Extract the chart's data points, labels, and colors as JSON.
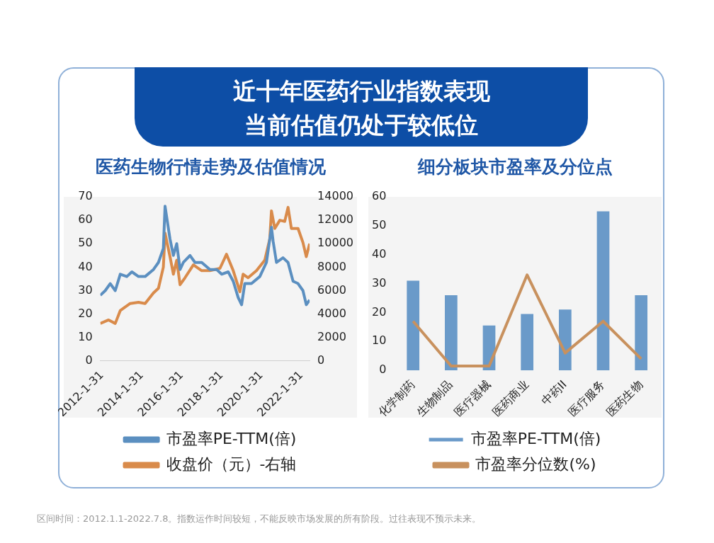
{
  "chart_data": [
    {
      "type": "other",
      "title": "近十年医药行业指数表现当前估值仍处于较低位",
      "annotations": [
        "区间时间：2012.1.1-2022.7.8。指数运作时间较短，不能反映市场发展的所有阶段。过往表现不预示未来。"
      ]
    },
    {
      "type": "line",
      "title": "医药生物行情走势及估值情况",
      "legend": "bottom",
      "xlim": [
        "2012-01",
        "2022-07"
      ],
      "xticks": [
        {
          "value": "2012-01-31",
          "label": "2012-1-31"
        },
        {
          "value": "2014-01-31",
          "label": "2014-1-31"
        },
        {
          "value": "2016-01-31",
          "label": "2016-1-31"
        },
        {
          "value": "2018-01-31",
          "label": "2018-1-31"
        },
        {
          "value": "2020-01-31",
          "label": "2020-1-31"
        },
        {
          "value": "2022-01-31",
          "label": "2022-1-31"
        }
      ],
      "ylim": [
        0,
        70
      ],
      "yticks": [
        0,
        10,
        20,
        30,
        40,
        50,
        60,
        70
      ],
      "y2lim": [
        0,
        14000
      ],
      "y2ticks": [
        0,
        2000,
        4000,
        6000,
        8000,
        10000,
        12000,
        14000
      ],
      "series": [
        {
          "name": "市盈率PE-TTM(倍)",
          "color": "#5b8fc0",
          "x": [
            "2012-01",
            "2012-04",
            "2012-07",
            "2012-10",
            "2013-01",
            "2013-05",
            "2013-08",
            "2013-12",
            "2014-04",
            "2014-09",
            "2014-12",
            "2015-03",
            "2015-04",
            "2015-07",
            "2015-09",
            "2015-11",
            "2016-01",
            "2016-03",
            "2016-07",
            "2016-10",
            "2017-02",
            "2017-07",
            "2017-11",
            "2018-02",
            "2018-06",
            "2018-09",
            "2018-12",
            "2019-02",
            "2019-04",
            "2019-08",
            "2020-01",
            "2020-05",
            "2020-08",
            "2020-09",
            "2020-11",
            "2021-03",
            "2021-06",
            "2021-09",
            "2021-12",
            "2022-03",
            "2022-05",
            "2022-07"
          ],
          "values": [
            28,
            30,
            33,
            30,
            37,
            36,
            38,
            36,
            36,
            39,
            42,
            48,
            66,
            52,
            45,
            50,
            39,
            42,
            45,
            42,
            42,
            39,
            39,
            37,
            38,
            34,
            27,
            24,
            33,
            33,
            36,
            42,
            57,
            51,
            42,
            44,
            42,
            34,
            33,
            30,
            24,
            26
          ]
        },
        {
          "name": "收盘价（元）-右轴",
          "color": "#d98b4b",
          "axis": "y2",
          "x": [
            "2012-01",
            "2012-06",
            "2012-10",
            "2013-01",
            "2013-07",
            "2013-12",
            "2014-04",
            "2014-09",
            "2014-12",
            "2015-03",
            "2015-04",
            "2015-07",
            "2015-09",
            "2015-11",
            "2016-01",
            "2016-04",
            "2016-09",
            "2017-02",
            "2017-07",
            "2018-01",
            "2018-05",
            "2018-09",
            "2019-01",
            "2019-03",
            "2019-06",
            "2019-11",
            "2020-04",
            "2020-07",
            "2020-08",
            "2020-10",
            "2021-01",
            "2021-04",
            "2021-06",
            "2021-08",
            "2021-12",
            "2022-03",
            "2022-05",
            "2022-07"
          ],
          "values": [
            3200,
            3500,
            3200,
            4300,
            4900,
            5000,
            4900,
            5800,
            6200,
            8000,
            10900,
            8900,
            7400,
            8600,
            6500,
            7100,
            8200,
            7700,
            7700,
            7900,
            9100,
            7700,
            5900,
            7400,
            7100,
            7700,
            8600,
            10400,
            12800,
            11300,
            12000,
            11900,
            13100,
            11300,
            11300,
            10100,
            8900,
            10000
          ]
        }
      ]
    },
    {
      "type": "bar",
      "title": "细分板块市盈率及分位点",
      "legend": "bottom",
      "categories": [
        "化学制药",
        "生物制品",
        "医疗器械",
        "医药商业",
        "中药II",
        "医疗服务",
        "医药生物"
      ],
      "ylim": [
        0,
        60
      ],
      "yticks": [
        0,
        10,
        20,
        30,
        40,
        50,
        60
      ],
      "series": [
        {
          "name": "市盈率PE-TTM(倍)",
          "color": "#6a9ac9",
          "values": [
            31,
            26,
            15.5,
            19.5,
            21,
            55,
            26
          ]
        },
        {
          "name": "市盈率分位数(%)",
          "color": "#c8915e",
          "type": "line",
          "values": [
            17,
            1.5,
            1.5,
            33,
            6,
            17,
            4
          ]
        }
      ]
    }
  ]
}
